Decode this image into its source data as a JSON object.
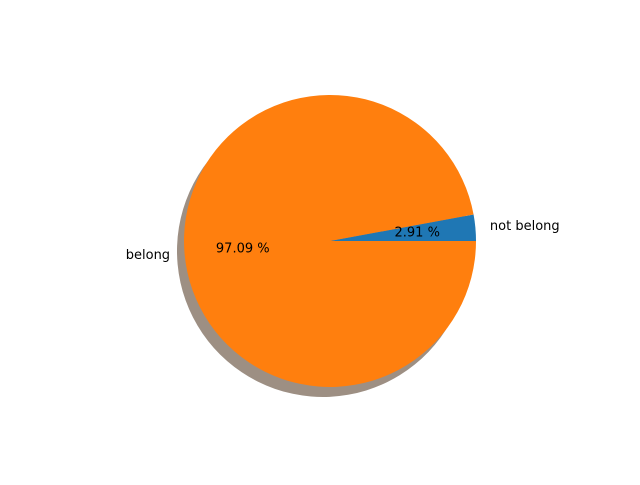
{
  "chart_data": {
    "type": "pie",
    "shadow": true,
    "start_angle_deg": 0,
    "direction": "counterclockwise",
    "slices": [
      {
        "label": "not belong",
        "value": 2.91,
        "pct_label": "2.91 %",
        "color": "#1f77b4"
      },
      {
        "label": "belong",
        "value": 97.09,
        "pct_label": "97.09 %",
        "color": "#ff7f0e"
      }
    ],
    "shadow_color": "#9d8f83"
  }
}
